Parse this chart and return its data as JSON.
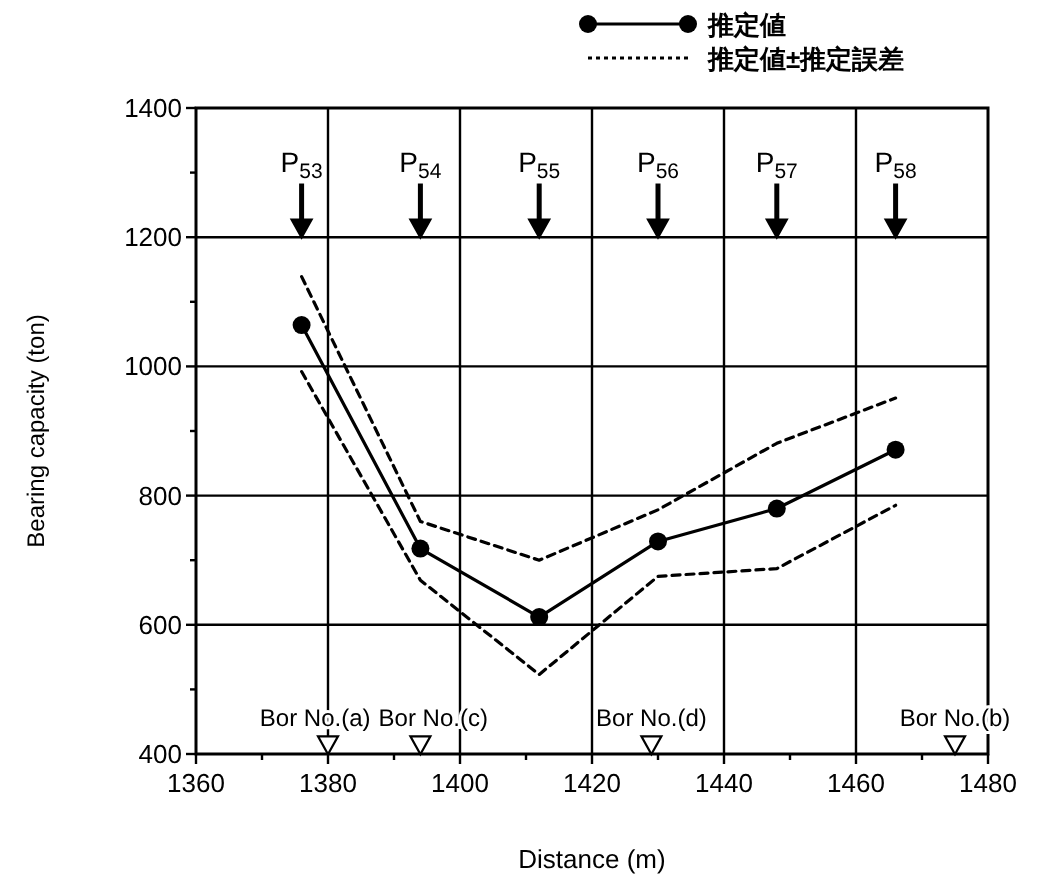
{
  "chart_data": {
    "type": "line",
    "xlabel": "Distance (m)",
    "ylabel": "Bearing capacity (ton)",
    "xlim": [
      1360,
      1480
    ],
    "ylim": [
      400,
      1400
    ],
    "xticks": [
      1360,
      {
        "value": 1370,
        "label": null
      },
      1380,
      {
        "value": 1390,
        "label": null
      },
      1400,
      {
        "value": 1410,
        "label": null
      },
      1420,
      {
        "value": 1430,
        "label": null
      },
      1440,
      {
        "value": 1450,
        "label": null
      },
      1460,
      {
        "value": 1470,
        "label": null
      },
      1480
    ],
    "yticks": [
      400,
      {
        "value": 500,
        "label": null
      },
      600,
      {
        "value": 700,
        "label": null
      },
      800,
      {
        "value": 900,
        "label": null
      },
      1000,
      {
        "value": 1100,
        "label": null
      },
      1200,
      {
        "value": 1300,
        "label": null
      },
      1400
    ],
    "grid": true,
    "legend": "top right",
    "series": [
      {
        "name": "推定値",
        "color": "#000000",
        "x": [
          1376,
          1394,
          1412,
          1430,
          1448,
          1466
        ],
        "values": [
          1064,
          718,
          612,
          729,
          780,
          871
        ],
        "marker": "circle",
        "line_style": "solid"
      },
      {
        "name": "推定値±推定誤差",
        "color": "#000000",
        "x": [
          1376,
          1394,
          1412,
          1430,
          1448,
          1466
        ],
        "values": [
          1139,
          760,
          700,
          778,
          881,
          951
        ],
        "marker": "none",
        "line_style": "dashed"
      },
      {
        "color": "#000000",
        "x": [
          1376,
          1394,
          1412,
          1430,
          1448,
          1466
        ],
        "values": [
          992,
          669,
          523,
          675,
          687,
          785
        ],
        "marker": "none",
        "line_style": "dashed"
      },
      {
        "type": "scatter",
        "color": "#000000",
        "x": [
          1376,
          1394,
          1412,
          1430,
          1448,
          1466
        ],
        "values": [
          1215,
          1215,
          1215,
          1215,
          1215,
          1215
        ],
        "marker": "triangle"
      },
      {
        "type": "scatter",
        "color": "#ffffff",
        "x": [
          1380,
          1394,
          1429,
          1475
        ],
        "values": [
          415,
          415,
          415,
          415
        ],
        "marker": "triangle"
      }
    ],
    "annotations": [
      {
        "text": "P$_{53}$",
        "x": 1376,
        "y": 1215
      },
      {
        "text": "P$_{54}$",
        "x": 1394,
        "y": 1215
      },
      {
        "text": "P$_{55}$",
        "x": 1412,
        "y": 1215
      },
      {
        "text": "P$_{56}$",
        "x": 1430,
        "y": 1215
      },
      {
        "text": "P$_{57}$",
        "x": 1448,
        "y": 1215
      },
      {
        "text": "P$_{58}$",
        "x": 1466,
        "y": 1215
      },
      {
        "text": "Bor No.(a)",
        "x": 1380,
        "y": 415
      },
      {
        "text": "Bor No.(c)",
        "x": 1394,
        "y": 415
      },
      {
        "text": "Bor No.(d)",
        "x": 1429,
        "y": 415
      },
      {
        "text": "Bor No.(b)",
        "x": 1475,
        "y": 415
      }
    ]
  }
}
